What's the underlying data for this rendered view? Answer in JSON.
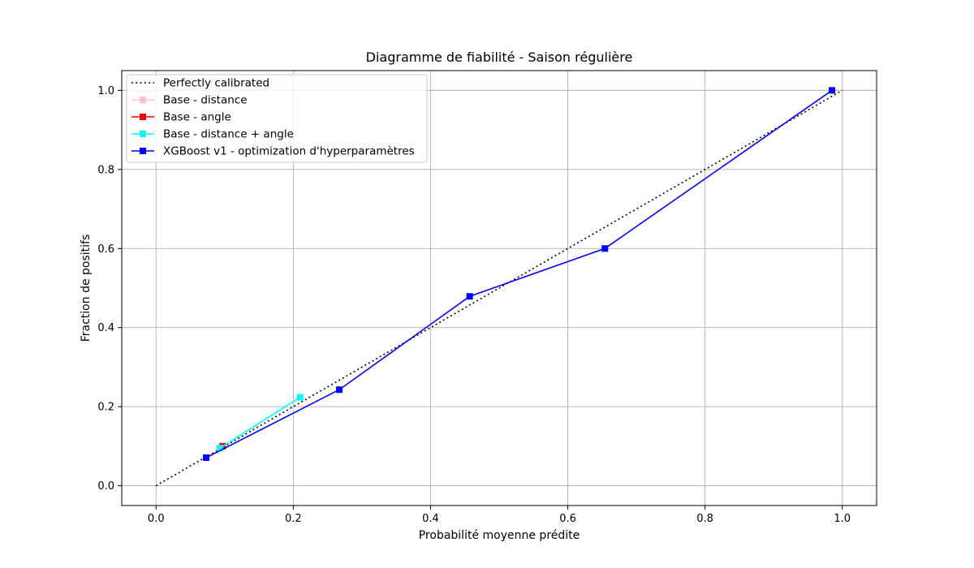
{
  "chart_data": {
    "type": "line",
    "title": "Diagramme de fiabilité - Saison régulière",
    "xlabel": "Probabilité moyenne prédite",
    "ylabel": "Fraction de positifs",
    "xlim": [
      -0.05,
      1.05
    ],
    "ylim": [
      -0.05,
      1.05
    ],
    "xticks": [
      "0.0",
      "0.2",
      "0.4",
      "0.6",
      "0.8",
      "1.0"
    ],
    "yticks": [
      "0.0",
      "0.2",
      "0.4",
      "0.6",
      "0.8",
      "1.0"
    ],
    "grid": true,
    "legend_position": "top-left",
    "series": [
      {
        "name": "Perfectly calibrated",
        "color": "#000000",
        "style": "dotted",
        "marker": "none",
        "points": [
          [
            0,
            0
          ],
          [
            1,
            1
          ]
        ]
      },
      {
        "name": "Base - distance",
        "color": "#ffc0cb",
        "style": "solid",
        "marker": "square",
        "points": [
          [
            0.095,
            0.095
          ]
        ]
      },
      {
        "name": "Base - angle",
        "color": "#ff0000",
        "style": "solid",
        "marker": "square",
        "points": [
          [
            0.097,
            0.1
          ]
        ]
      },
      {
        "name": "Base - distance + angle",
        "color": "#00ffff",
        "style": "solid",
        "marker": "square",
        "points": [
          [
            0.093,
            0.095
          ],
          [
            0.21,
            0.224
          ]
        ]
      },
      {
        "name": "XGBoost v1 - optimization d'hyperparamètres",
        "color": "#0000ff",
        "style": "solid",
        "marker": "square",
        "points": [
          [
            0.073,
            0.071
          ],
          [
            0.267,
            0.243
          ],
          [
            0.457,
            0.479
          ],
          [
            0.654,
            0.6
          ],
          [
            0.985,
            1.0
          ]
        ]
      }
    ]
  }
}
